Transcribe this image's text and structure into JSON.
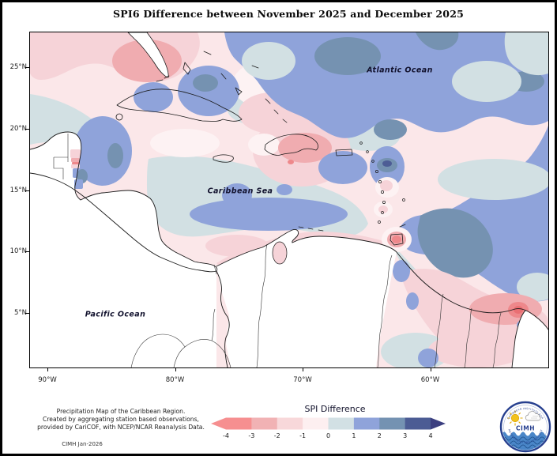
{
  "title": "SPI6 Difference between November 2025 and December 2025",
  "map": {
    "ocean_labels": {
      "atlantic": "Atlantic Ocean",
      "caribbean": "Caribbean Sea",
      "pacific": "Pacific Ocean"
    },
    "lat_ticks": [
      {
        "deg": 25,
        "label": "25°N"
      },
      {
        "deg": 20,
        "label": "20°N"
      },
      {
        "deg": 15,
        "label": "15°N"
      },
      {
        "deg": 10,
        "label": "10°N"
      },
      {
        "deg": 5,
        "label": "5°N"
      }
    ],
    "lon_ticks": [
      {
        "deg": 90,
        "label": "90°W"
      },
      {
        "deg": 80,
        "label": "80°W"
      },
      {
        "deg": 70,
        "label": "70°W"
      },
      {
        "deg": 60,
        "label": "60°W"
      }
    ]
  },
  "legend": {
    "title": "SPI Difference",
    "tick_labels": [
      "-4",
      "-3",
      "-2",
      "-1",
      "0",
      "1",
      "2",
      "3",
      "4"
    ],
    "segment_colors": [
      "#f68f90",
      "#f1b2b4",
      "#f8d8da",
      "#fdeff0",
      "#d2e0e4",
      "#8fa3da",
      "#7492b2",
      "#4c5c94"
    ],
    "left_arrow_color": "#f68f90",
    "right_arrow_color": "#3c3f80"
  },
  "attribution": {
    "line1": "Precipitation Map of the Caribbean Region.",
    "line2": "Created by aggregating station based observations,",
    "line3": "provided by CariCOF, with NCEP/NCAR Reanalysis Data.",
    "stamp": "CIMH Jan-2026"
  },
  "logo": {
    "acronym": "CIMH",
    "arc_top": "CARIBBEAN INSTITUTE FOR",
    "arc_bottom": "METEOROLOGY AND HYDROLOGY"
  },
  "palette": {
    "base_pale_pink": "#fbe7e9",
    "teal_0_1": "#d2e0e3",
    "near_zero_light": "#fdf2f3",
    "pink_m2_m1": "#f6d3d8",
    "salmon_m3_m2": "#f0acb0",
    "red_m4_m3": "#ee888b",
    "periwinkle_1_2": "#8fa3da",
    "steel_2_3": "#7592b1",
    "navy_3_4": "#4d5d95",
    "land_no_data": "#ffffff",
    "coastline": "#1a1a1a"
  },
  "chart_data": {
    "type": "heatmap",
    "title": "SPI6 Difference between November 2025 and December 2025",
    "legend_title": "SPI Difference",
    "scale_ticks": [
      -4,
      -3,
      -2,
      -1,
      0,
      1,
      2,
      3,
      4
    ],
    "lat_axis_deg_n": [
      25,
      20,
      15,
      10,
      5
    ],
    "lon_axis_deg_w": [
      90,
      80,
      70,
      60
    ],
    "regions": [
      {
        "area": "Atlantic Ocean north-east of the Antilles",
        "spi_difference": "+1 to +3"
      },
      {
        "area": "Gulf of Mexico / north-west corner",
        "spi_difference": "-1 to -3"
      },
      {
        "area": "Hispaniola and surrounding waters",
        "spi_difference": "-1 to -3"
      },
      {
        "area": "Central Caribbean Sea",
        "spi_difference": "0 to +1 with +1 to +2 band along South American coast"
      },
      {
        "area": "Yucatan Channel / Belize coast",
        "spi_difference": "+1 to +3 with small -3 to -4 spot"
      },
      {
        "area": "Windward Islands / Trinidad",
        "spi_difference": "-3 to -4 spot over Trinidad"
      },
      {
        "area": "Atlantic east of Tobago",
        "spi_difference": "+2 to +3"
      },
      {
        "area": "The Guianas",
        "spi_difference": "-1 to -4 (red core near French Guiana)"
      },
      {
        "area": "Pacific Ocean and continental interior",
        "spi_difference": "no data (white)"
      }
    ]
  }
}
